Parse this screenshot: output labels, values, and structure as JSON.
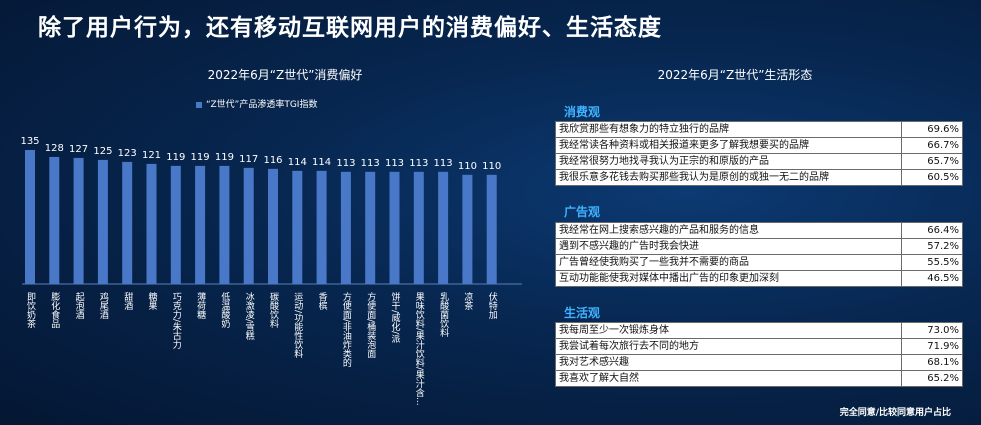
{
  "page_title": "除了用户行为，还有移动互联网用户的消费偏好、生活态度",
  "chart_data": {
    "type": "bar",
    "title": "2022年6月“Z世代”消费偏好",
    "legend": "“Z世代”产品渗透率TGI指数",
    "bar_color": "#4a78c8",
    "categories": [
      "即饮奶茶",
      "膨化食品",
      "起泡酒",
      "鸡尾酒",
      "甜酒",
      "糖果",
      "巧克力/朱古力",
      "薄荷糖",
      "低温酸奶",
      "冰激凌/雪糕",
      "碳酸饮料",
      "运动/功能性饮料",
      "香槟",
      "方便面/非油炸类的",
      "方便面/桶装泡面",
      "饼干/威化/派",
      "果味饮料/果汁饮料/果汁含...",
      "乳酸菌饮料",
      "凉茶",
      "伏特加"
    ],
    "values": [
      135,
      128,
      127,
      125,
      123,
      121,
      119,
      119,
      119,
      117,
      116,
      114,
      114,
      113,
      113,
      113,
      113,
      113,
      110,
      110
    ],
    "ylim": [
      0,
      140
    ]
  },
  "right_title": "2022年6月“Z世代”生活形态",
  "sections": [
    {
      "title": "消费观",
      "rows": [
        {
          "label": "我欣赏那些有想象力的特立独行的品牌",
          "value": "69.6%"
        },
        {
          "label": "我经常读各种资料或相关报道来更多了解我想要买的品牌",
          "value": "66.7%"
        },
        {
          "label": "我经常很努力地找寻我认为正宗的和原版的产品",
          "value": "65.7%"
        },
        {
          "label": "我很乐意多花钱去购买那些我认为是原创的或独一无二的品牌",
          "value": "60.5%"
        }
      ]
    },
    {
      "title": "广告观",
      "rows": [
        {
          "label": "我经常在网上搜索感兴趣的产品和服务的信息",
          "value": "66.4%"
        },
        {
          "label": "遇到不感兴趣的广告时我会快进",
          "value": "57.2%"
        },
        {
          "label": "广告曾经使我购买了一些我并不需要的商品",
          "value": "55.5%"
        },
        {
          "label": "互动功能能使我对媒体中播出广告的印象更加深刻",
          "value": "46.5%"
        }
      ]
    },
    {
      "title": "生活观",
      "rows": [
        {
          "label": "我每周至少一次锻炼身体",
          "value": "73.0%"
        },
        {
          "label": "我尝试着每次旅行去不同的地方",
          "value": "71.9%"
        },
        {
          "label": "我对艺术感兴趣",
          "value": "68.1%"
        },
        {
          "label": "我喜欢了解大自然",
          "value": "65.2%"
        }
      ]
    }
  ],
  "footnote": "完全同意/比较同意用户占比"
}
